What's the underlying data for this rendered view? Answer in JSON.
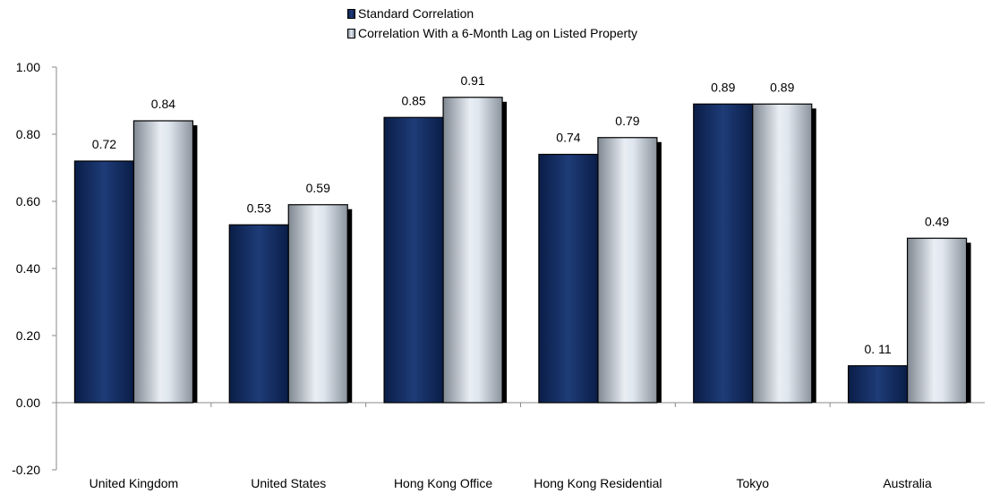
{
  "chart_data": {
    "type": "bar",
    "categories": [
      "United Kingdom",
      "United States",
      "Hong Kong Office",
      "Hong Kong Residential",
      "Tokyo",
      "Australia"
    ],
    "series": [
      {
        "name": "Standard Correlation",
        "values": [
          0.72,
          0.53,
          0.85,
          0.74,
          0.89,
          0.11
        ],
        "labels": [
          "0.72",
          "0.53",
          "0.85",
          "0.74",
          "0.89",
          "0. 11"
        ],
        "color": "#0b2a5c"
      },
      {
        "name": "Correlation With a 6-Month Lag on Listed Property",
        "values": [
          0.84,
          0.59,
          0.91,
          0.79,
          0.89,
          0.49
        ],
        "labels": [
          "0.84",
          "0.59",
          "0.91",
          "0.79",
          "0.89",
          "0.49"
        ],
        "color": "#c8d2dd"
      }
    ],
    "legend": {
      "position": "top-center",
      "labels": [
        "Standard Correlation",
        "Correlation With a 6-Month Lag on Listed Property"
      ]
    },
    "ylim": [
      -0.2,
      1.0
    ],
    "yticks": [
      "1.00",
      "0.80",
      "0.60",
      "0.40",
      "0.20",
      "0.00",
      "-0.20"
    ],
    "grid": false,
    "title": "",
    "xlabel": "",
    "ylabel": ""
  }
}
